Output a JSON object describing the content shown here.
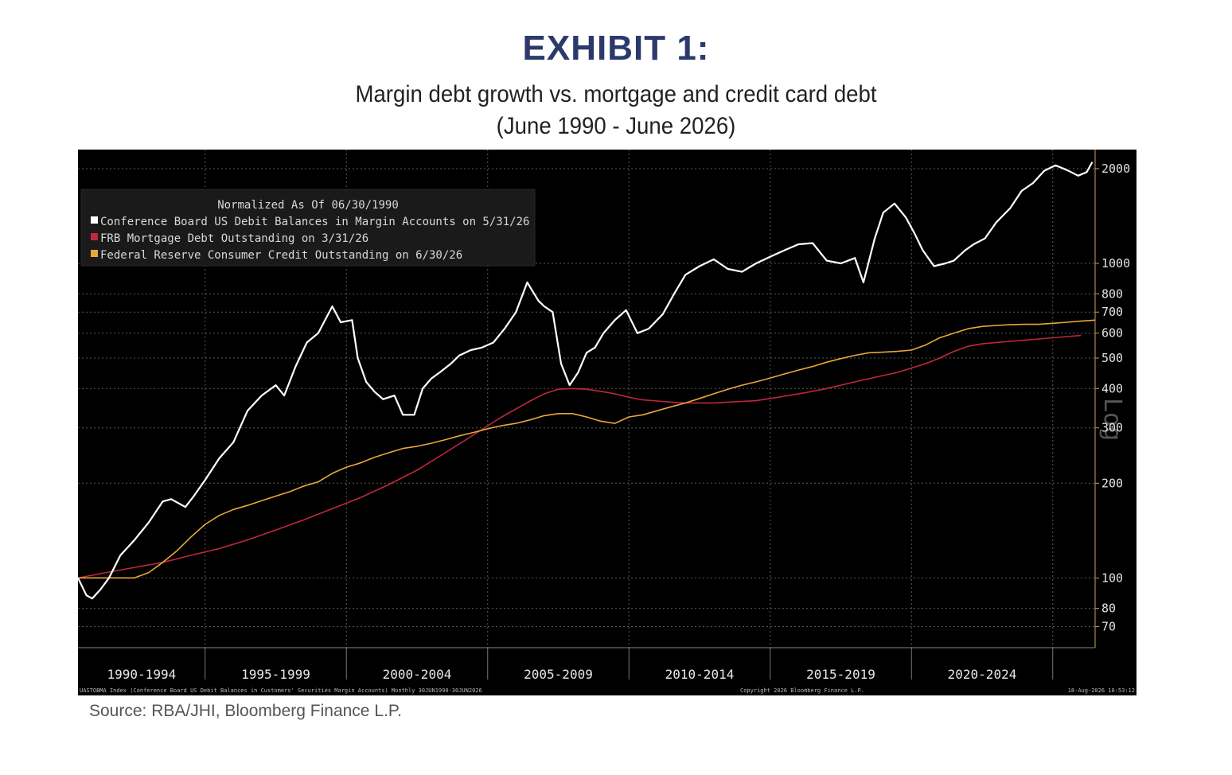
{
  "header": {
    "exhibit_title": "EXHIBIT 1:",
    "subtitle_line1": "Margin debt growth vs. mortgage and credit card debt",
    "subtitle_line2": "(June 1990 - June 2026)"
  },
  "footer": {
    "source": "Source: RBA/JHI, Bloomberg Finance L.P."
  },
  "chart_data": {
    "type": "line",
    "legend": {
      "title": "Normalized As Of 06/30/1990",
      "placement": "top-left"
    },
    "y_scale": "log",
    "y_axis_label": "Log",
    "ylim": [
      60,
      2300
    ],
    "xlim": [
      1990.5,
      2026.5
    ],
    "y_ticks": [
      70,
      80,
      100,
      200,
      300,
      400,
      500,
      600,
      700,
      800,
      1000,
      2000
    ],
    "x_tick_labels": [
      "1990-1994",
      "1995-1999",
      "2000-2004",
      "2005-2009",
      "2010-2014",
      "2015-2019",
      "2020-2024"
    ],
    "grid": true,
    "footer_left": "UASTOBMA Index (Conference Board US Debit Balances in Customers' Securities Margin Accounts) Monthly 30JUN1990-30JUN2026",
    "footer_center": "Copyright 2026 Bloomberg Finance L.P.",
    "footer_right": "18-Aug-2026 10:53:12",
    "series": [
      {
        "name": "Conference Board US Debit Balances in Margin Accounts on 5/31/26",
        "color": "#ffffff",
        "x": [
          1990.5,
          1990.8,
          1991.0,
          1991.3,
          1991.6,
          1992.0,
          1992.5,
          1993.0,
          1993.5,
          1993.8,
          1994.3,
          1994.6,
          1995.0,
          1995.5,
          1996.0,
          1996.5,
          1997.0,
          1997.5,
          1997.8,
          1998.2,
          1998.6,
          1999.0,
          1999.5,
          1999.8,
          2000.2,
          2000.4,
          2000.7,
          2001.0,
          2001.3,
          2001.7,
          2002.0,
          2002.4,
          2002.7,
          2003.0,
          2003.3,
          2003.7,
          2004.0,
          2004.4,
          2004.8,
          2005.2,
          2005.6,
          2006.0,
          2006.4,
          2006.8,
          2007.0,
          2007.3,
          2007.6,
          2007.9,
          2008.2,
          2008.5,
          2008.8,
          2009.1,
          2009.5,
          2009.9,
          2010.3,
          2010.7,
          2011.2,
          2011.6,
          2012.0,
          2012.5,
          2013.0,
          2013.5,
          2014.0,
          2014.5,
          2015.0,
          2015.5,
          2016.0,
          2016.5,
          2017.0,
          2017.5,
          2018.0,
          2018.3,
          2018.7,
          2019.0,
          2019.4,
          2019.8,
          2020.1,
          2020.4,
          2020.8,
          2021.2,
          2021.5,
          2021.9,
          2022.2,
          2022.6,
          2023.0,
          2023.5,
          2023.9,
          2024.3,
          2024.7,
          2025.1,
          2025.5,
          2025.9,
          2026.2,
          2026.4
        ],
        "values": [
          100,
          88,
          86,
          92,
          100,
          118,
          132,
          150,
          175,
          178,
          168,
          182,
          205,
          240,
          270,
          340,
          380,
          410,
          380,
          470,
          560,
          600,
          730,
          650,
          660,
          500,
          420,
          390,
          370,
          380,
          330,
          330,
          400,
          430,
          450,
          480,
          510,
          530,
          540,
          560,
          620,
          700,
          870,
          760,
          730,
          700,
          480,
          410,
          450,
          520,
          540,
          600,
          660,
          710,
          600,
          620,
          690,
          800,
          920,
          980,
          1030,
          960,
          940,
          1000,
          1050,
          1100,
          1150,
          1160,
          1020,
          1000,
          1040,
          870,
          1200,
          1450,
          1550,
          1400,
          1250,
          1100,
          980,
          1000,
          1020,
          1100,
          1150,
          1200,
          1350,
          1500,
          1700,
          1800,
          1970,
          2050,
          1980,
          1900,
          1950,
          2100
        ],
        "x_display": null
      },
      {
        "name": "FRB Mortgage Debt Outstanding on 3/31/26",
        "color": "#c0283c",
        "x": [
          1990.5,
          1991.5,
          1992.5,
          1993.5,
          1994.5,
          1995.5,
          1996.5,
          1997.5,
          1998.5,
          1999.5,
          2000.5,
          2001.5,
          2002.5,
          2003.5,
          2004.5,
          2005.5,
          2006.5,
          2007.0,
          2007.5,
          2008.0,
          2008.5,
          2009.0,
          2009.5,
          2010.0,
          2010.5,
          2011.0,
          2011.5,
          2012.0,
          2012.5,
          2013.0,
          2013.5,
          2014.0,
          2014.5,
          2015.0,
          2015.5,
          2016.0,
          2016.5,
          2017.0,
          2017.5,
          2018.0,
          2018.5,
          2019.0,
          2019.5,
          2020.0,
          2020.5,
          2021.0,
          2021.5,
          2022.0,
          2022.5,
          2023.0,
          2023.5,
          2024.0,
          2024.5,
          2025.0,
          2025.5,
          2026.0
        ],
        "values": [
          100,
          104,
          108,
          112,
          118,
          124,
          132,
          142,
          153,
          166,
          180,
          198,
          220,
          250,
          285,
          325,
          365,
          385,
          398,
          400,
          398,
          392,
          385,
          375,
          368,
          365,
          362,
          360,
          360,
          360,
          362,
          364,
          366,
          372,
          378,
          385,
          392,
          400,
          410,
          420,
          430,
          440,
          450,
          465,
          480,
          500,
          525,
          545,
          555,
          560,
          565,
          570,
          575,
          580,
          585,
          590
        ]
      },
      {
        "name": "Federal Reserve Consumer Credit Outstanding on 6/30/26",
        "color": "#e8a838",
        "x": [
          1990.5,
          1991.5,
          1992.5,
          1993.0,
          1993.5,
          1994.0,
          1994.5,
          1995.0,
          1995.5,
          1996.0,
          1996.5,
          1997.0,
          1997.5,
          1998.0,
          1998.5,
          1999.0,
          1999.5,
          2000.0,
          2000.5,
          2001.0,
          2001.5,
          2002.0,
          2002.5,
          2003.0,
          2003.5,
          2004.0,
          2004.5,
          2005.0,
          2005.5,
          2006.0,
          2006.5,
          2007.0,
          2007.5,
          2008.0,
          2008.5,
          2009.0,
          2009.5,
          2010.0,
          2010.5,
          2011.0,
          2011.5,
          2012.0,
          2012.5,
          2013.0,
          2013.5,
          2014.0,
          2014.5,
          2015.0,
          2015.5,
          2016.0,
          2016.5,
          2017.0,
          2017.5,
          2018.0,
          2018.5,
          2019.0,
          2019.5,
          2020.0,
          2020.5,
          2021.0,
          2021.5,
          2022.0,
          2022.5,
          2023.0,
          2023.5,
          2024.0,
          2024.5,
          2025.0,
          2025.5,
          2026.0,
          2026.5
        ],
        "values": [
          100,
          100,
          100,
          104,
          112,
          122,
          135,
          148,
          158,
          165,
          170,
          176,
          182,
          188,
          196,
          202,
          215,
          225,
          232,
          242,
          250,
          258,
          262,
          268,
          275,
          283,
          290,
          298,
          305,
          310,
          318,
          328,
          333,
          333,
          325,
          315,
          310,
          325,
          330,
          340,
          350,
          360,
          372,
          385,
          398,
          410,
          420,
          432,
          445,
          458,
          470,
          485,
          498,
          510,
          520,
          522,
          525,
          530,
          550,
          580,
          600,
          620,
          630,
          635,
          638,
          640,
          640,
          645,
          650,
          655,
          660
        ]
      }
    ]
  }
}
